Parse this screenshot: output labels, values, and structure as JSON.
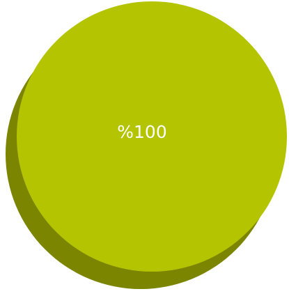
{
  "chart_data": {
    "type": "pie",
    "title": "",
    "slices": [
      {
        "label": "%100",
        "value": 100,
        "color": "#b4c400",
        "shadow_color": "#7b8500"
      }
    ]
  }
}
